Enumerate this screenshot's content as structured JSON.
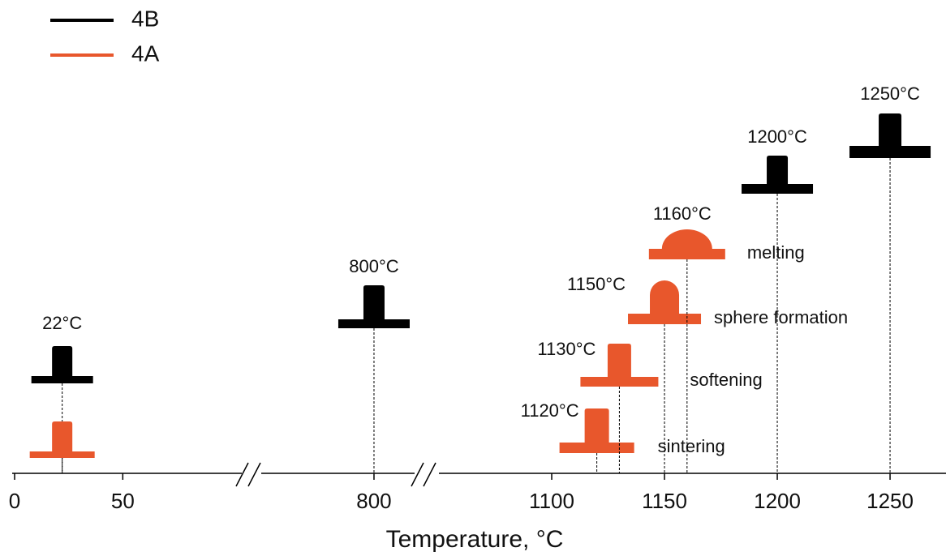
{
  "chart_data": {
    "type": "profile",
    "xlabel": "Temperature, °C",
    "series": [
      {
        "name": "4B",
        "color": "#000000",
        "samples": [
          {
            "x": 22,
            "label": "22°C"
          },
          {
            "x": 800,
            "label": "800°C"
          },
          {
            "x": 1200,
            "label": "1200°C"
          },
          {
            "x": 1250,
            "label": "1250°C"
          }
        ]
      },
      {
        "name": "4A",
        "color": "#e8572c",
        "samples": [
          {
            "x": 22
          },
          {
            "x": 1120,
            "label": "1120°C",
            "stage": "sintering"
          },
          {
            "x": 1130,
            "label": "1130°C",
            "stage": "softening"
          },
          {
            "x": 1150,
            "label": "1150°C",
            "stage": "sphere formation"
          },
          {
            "x": 1160,
            "label": "1160°C",
            "stage": "melting"
          }
        ]
      }
    ],
    "x_segments": [
      {
        "xlim": [
          0,
          105
        ],
        "xticks": [
          0,
          50
        ]
      },
      {
        "xlim": [
          750,
          818
        ],
        "xticks": [
          800
        ]
      },
      {
        "xlim": [
          1050,
          1273
        ],
        "xticks": [
          1100,
          1150,
          1200,
          1250
        ]
      }
    ]
  }
}
